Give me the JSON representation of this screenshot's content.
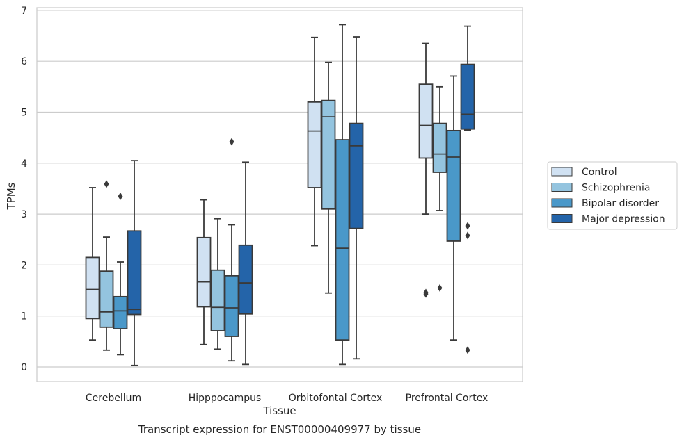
{
  "caption": "Transcript expression for ENST00000409977 by tissue",
  "chart_data": {
    "type": "boxplot",
    "xlabel": "Tissue",
    "ylabel": "TPMs",
    "ylim": [
      -0.3,
      7.05
    ],
    "yticks": [
      0,
      1,
      2,
      3,
      4,
      5,
      6,
      7
    ],
    "grid": "horizontal",
    "legend_position": "right",
    "categories": [
      "Cerebellum",
      "Hipppocampus",
      "Orbitofontal Cortex",
      "Prefrontal Cortex"
    ],
    "series": [
      {
        "name": "Control",
        "color": "#d0e1f2",
        "boxes": [
          {
            "whislo": 0.53,
            "q1": 0.95,
            "med": 1.52,
            "q3": 2.15,
            "whishi": 3.52,
            "fliers": []
          },
          {
            "whislo": 0.44,
            "q1": 1.18,
            "med": 1.67,
            "q3": 2.54,
            "whishi": 3.28,
            "fliers": []
          },
          {
            "whislo": 2.38,
            "q1": 3.52,
            "med": 4.63,
            "q3": 5.2,
            "whishi": 6.47,
            "fliers": []
          },
          {
            "whislo": 3.0,
            "q1": 4.1,
            "med": 4.74,
            "q3": 5.55,
            "whishi": 6.35,
            "fliers": [
              1.43,
              1.46
            ]
          }
        ]
      },
      {
        "name": "Schizophrenia",
        "color": "#94c4df",
        "boxes": [
          {
            "whislo": 0.33,
            "q1": 0.78,
            "med": 1.08,
            "q3": 1.88,
            "whishi": 2.55,
            "fliers": [
              3.59
            ]
          },
          {
            "whislo": 0.35,
            "q1": 0.71,
            "med": 1.17,
            "q3": 1.9,
            "whishi": 2.91,
            "fliers": []
          },
          {
            "whislo": 1.45,
            "q1": 3.1,
            "med": 4.91,
            "q3": 5.23,
            "whishi": 5.98,
            "fliers": []
          },
          {
            "whislo": 3.07,
            "q1": 3.82,
            "med": 4.18,
            "q3": 4.78,
            "whishi": 5.5,
            "fliers": [
              1.55
            ]
          }
        ]
      },
      {
        "name": "Bipolar disorder",
        "color": "#4a98c9",
        "boxes": [
          {
            "whislo": 0.24,
            "q1": 0.75,
            "med": 1.1,
            "q3": 1.38,
            "whishi": 2.06,
            "fliers": [
              3.35
            ]
          },
          {
            "whislo": 0.12,
            "q1": 0.6,
            "med": 1.16,
            "q3": 1.79,
            "whishi": 2.79,
            "fliers": [
              4.42
            ]
          },
          {
            "whislo": 0.05,
            "q1": 0.53,
            "med": 2.33,
            "q3": 4.46,
            "whishi": 6.72,
            "fliers": []
          },
          {
            "whislo": 0.53,
            "q1": 2.47,
            "med": 4.12,
            "q3": 4.64,
            "whishi": 5.71,
            "fliers": []
          }
        ]
      },
      {
        "name": "Major depression",
        "color": "#2464a9",
        "boxes": [
          {
            "whislo": 0.03,
            "q1": 1.03,
            "med": 1.13,
            "q3": 2.67,
            "whishi": 4.05,
            "fliers": []
          },
          {
            "whislo": 0.05,
            "q1": 1.04,
            "med": 1.65,
            "q3": 2.39,
            "whishi": 4.02,
            "fliers": []
          },
          {
            "whislo": 0.16,
            "q1": 2.72,
            "med": 4.34,
            "q3": 4.78,
            "whishi": 6.48,
            "fliers": []
          },
          {
            "whislo": 4.65,
            "q1": 4.67,
            "med": 4.96,
            "q3": 5.94,
            "whishi": 6.69,
            "fliers": [
              2.77,
              2.58,
              0.33
            ]
          }
        ]
      }
    ]
  }
}
